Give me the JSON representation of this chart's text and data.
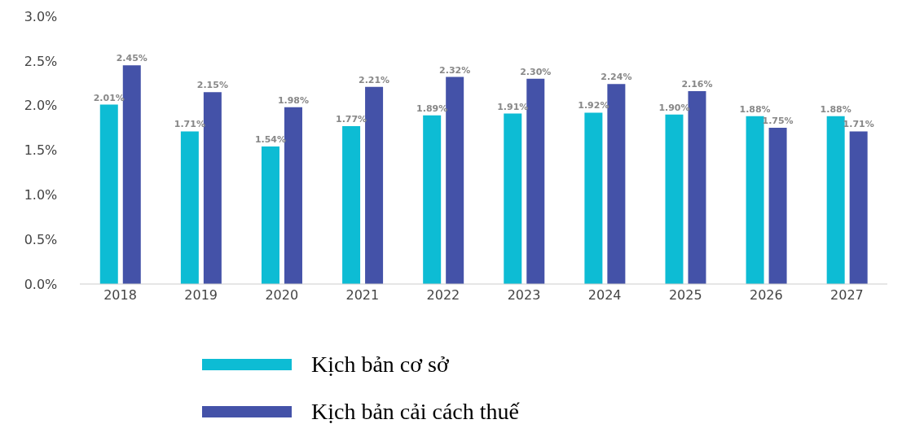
{
  "chart_data": {
    "type": "bar",
    "categories": [
      "2018",
      "2019",
      "2020",
      "2021",
      "2022",
      "2023",
      "2024",
      "2025",
      "2026",
      "2027"
    ],
    "series": [
      {
        "name": "Kịch bản cơ sở",
        "color": "#0dbcd4",
        "values": [
          2.01,
          1.71,
          1.54,
          1.77,
          1.89,
          1.91,
          1.92,
          1.9,
          1.88,
          1.88
        ],
        "value_labels": [
          "2.01%",
          "1.71%",
          "1.54%",
          "1.77%",
          "1.89%",
          "1.91%",
          "1.92%",
          "1.90%",
          "1.88%",
          "1.88%"
        ]
      },
      {
        "name": "Kịch bản cải cách thuế",
        "color": "#4452a8",
        "values": [
          2.45,
          2.15,
          1.98,
          2.21,
          2.32,
          2.3,
          2.24,
          2.16,
          1.75,
          1.71
        ],
        "value_labels": [
          "2.45%",
          "2.15%",
          "1.98%",
          "2.21%",
          "2.32%",
          "2.30%",
          "2.24%",
          "2.16%",
          "1.75%",
          "1.71%"
        ]
      }
    ],
    "ylim": [
      0,
      3
    ],
    "yticks": [
      {
        "value": 0,
        "label": "0.0%"
      },
      {
        "value": 0.5,
        "label": "0.5%"
      },
      {
        "value": 1,
        "label": "1.0%"
      },
      {
        "value": 1.5,
        "label": "1.5%"
      },
      {
        "value": 2,
        "label": "2.0%"
      },
      {
        "value": 2.5,
        "label": "2.5%"
      },
      {
        "value": 3,
        "label": "3.0%"
      }
    ],
    "grid": false,
    "legend": "bottom"
  }
}
